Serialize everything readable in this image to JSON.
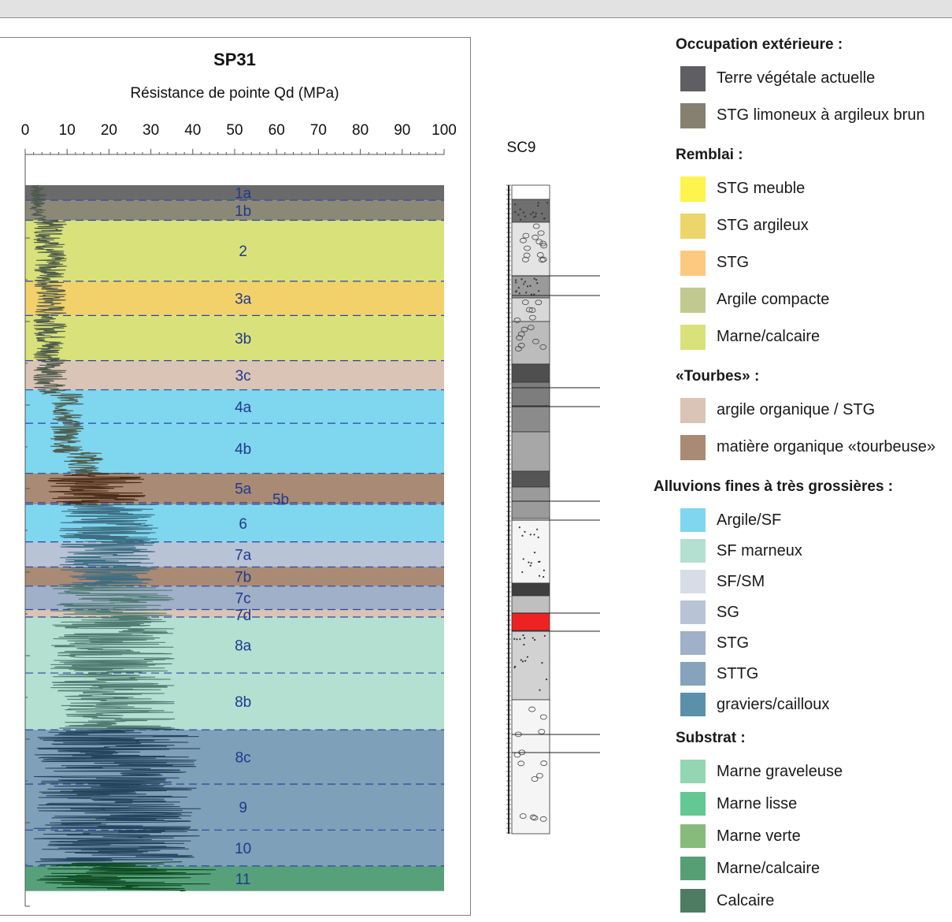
{
  "chart_data": {
    "type": "area",
    "title": "SP31",
    "xlabel": "Résistance de pointe Qd (MPa)",
    "xlim": [
      0,
      100
    ],
    "x_ticks": [
      "0",
      "10",
      "20",
      "30",
      "40",
      "50",
      "60",
      "70",
      "80",
      "90",
      "100"
    ],
    "log_label": "SC9",
    "layers": [
      {
        "name": "1a",
        "top": 0.0,
        "bottom": 0.18,
        "color": "#6a6a6a"
      },
      {
        "name": "1b",
        "top": 0.18,
        "bottom": 0.42,
        "color": "#8c8878"
      },
      {
        "name": "2",
        "top": 0.42,
        "bottom": 1.15,
        "color": "#d9e27a"
      },
      {
        "name": "3a",
        "top": 1.15,
        "bottom": 1.56,
        "color": "#f2d16b"
      },
      {
        "name": "3b",
        "top": 1.56,
        "bottom": 2.1,
        "color": "#d9e27a"
      },
      {
        "name": "3c",
        "top": 2.1,
        "bottom": 2.45,
        "color": "#d9c4b5"
      },
      {
        "name": "4a",
        "top": 2.45,
        "bottom": 2.85,
        "color": "#7fd6ef"
      },
      {
        "name": "4b",
        "top": 2.85,
        "bottom": 3.45,
        "color": "#7fd6ef"
      },
      {
        "name": "5a",
        "top": 3.45,
        "bottom": 3.8,
        "color": "#a98a74"
      },
      {
        "name": "5b",
        "top": 3.8,
        "bottom": 3.82,
        "color": "#a98a74"
      },
      {
        "name": "6",
        "top": 3.82,
        "bottom": 4.27,
        "color": "#7fd6ef"
      },
      {
        "name": "7a",
        "top": 4.27,
        "bottom": 4.57,
        "color": "#b8c4d6"
      },
      {
        "name": "7b",
        "top": 4.57,
        "bottom": 4.8,
        "color": "#a98a74"
      },
      {
        "name": "7c",
        "top": 4.8,
        "bottom": 5.08,
        "color": "#9fb0c8"
      },
      {
        "name": "7d",
        "top": 5.08,
        "bottom": 5.17,
        "color": "#d9c4b5"
      },
      {
        "name": "8a",
        "top": 5.17,
        "bottom": 5.84,
        "color": "#b3e0d1"
      },
      {
        "name": "8b",
        "top": 5.84,
        "bottom": 6.52,
        "color": "#b3e0d1"
      },
      {
        "name": "8c",
        "top": 6.52,
        "bottom": 7.17,
        "color": "#7ea0b8"
      },
      {
        "name": "9",
        "top": 7.17,
        "bottom": 7.72,
        "color": "#7ea0b8"
      },
      {
        "name": "10",
        "top": 7.72,
        "bottom": 8.15,
        "color": "#7ea0b8"
      },
      {
        "name": "11",
        "top": 8.15,
        "bottom": 8.45,
        "color": "#56a17a"
      }
    ],
    "qd_profile_zones": [
      {
        "from": 0.0,
        "to": 0.4,
        "mean": 3,
        "spread": 2
      },
      {
        "from": 0.4,
        "to": 2.5,
        "mean": 6,
        "spread": 4
      },
      {
        "from": 2.5,
        "to": 3.2,
        "mean": 10,
        "spread": 4
      },
      {
        "from": 3.2,
        "to": 3.45,
        "mean": 14,
        "spread": 5
      },
      {
        "from": 3.45,
        "to": 3.82,
        "mean": 17,
        "spread": 12
      },
      {
        "from": 3.82,
        "to": 4.8,
        "mean": 20,
        "spread": 12
      },
      {
        "from": 4.8,
        "to": 6.5,
        "mean": 21,
        "spread": 15
      },
      {
        "from": 6.5,
        "to": 8.1,
        "mean": 22,
        "spread": 20
      },
      {
        "from": 8.1,
        "to": 8.45,
        "mean": 24,
        "spread": 22
      }
    ]
  },
  "legend": {
    "groups": [
      {
        "heading": "Occupation extérieure :",
        "items": [
          {
            "label": "Terre végétale actuelle",
            "color": "#5f5f63"
          },
          {
            "label": "STG  limoneux à argileux brun",
            "color": "#858070"
          }
        ]
      },
      {
        "heading": "Remblai :",
        "items": [
          {
            "label": "STG meuble",
            "color": "#fff34d"
          },
          {
            "label": "STG argileux",
            "color": "#ecd56a"
          },
          {
            "label": "STG",
            "color": "#fdc97e"
          },
          {
            "label": "Argile compacte",
            "color": "#c2c990"
          },
          {
            "label": "Marne/calcaire",
            "color": "#d9e27a"
          }
        ]
      },
      {
        "heading": "«Tourbes» :",
        "items": [
          {
            "label": "argile organique / STG",
            "color": "#d9c4b5"
          },
          {
            "label": "matière organique «tourbeuse»",
            "color": "#a98a74"
          }
        ]
      },
      {
        "heading": "Alluvions fines à très grossières :",
        "items": [
          {
            "label": "Argile/SF",
            "color": "#7fd6ef"
          },
          {
            "label": "SF marneux",
            "color": "#b3e0d1"
          },
          {
            "label": "SF/SM",
            "color": "#d6dde6"
          },
          {
            "label": "SG",
            "color": "#b8c4d6"
          },
          {
            "label": "STG",
            "color": "#9fb0c8"
          },
          {
            "label": "STTG",
            "color": "#85a3ba"
          },
          {
            "label": "graviers/cailloux",
            "color": "#5b90aa"
          }
        ]
      },
      {
        "heading": "Substrat :",
        "items": [
          {
            "label": "Marne graveleuse",
            "color": "#93d6b2"
          },
          {
            "label": "Marne lisse",
            "color": "#64c894"
          },
          {
            "label": "Marne verte",
            "color": "#86bb7c"
          },
          {
            "label": "Marne/calcaire",
            "color": "#569e74"
          },
          {
            "label": "Calcaire",
            "color": "#4e7c62"
          }
        ]
      }
    ]
  }
}
